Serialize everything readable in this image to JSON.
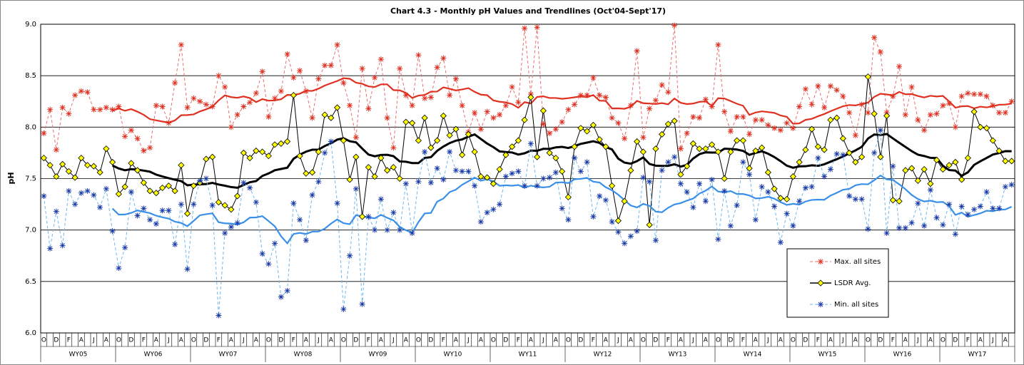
{
  "chart_data": {
    "type": "line",
    "title": "Chart 4.3 - Monthly pH Values and Trendlines (Oct'04-Sept'17)",
    "y_label": "pH",
    "ylim": [
      6,
      9
    ],
    "yticks": [
      {
        "value": 6,
        "label": "6.0"
      },
      6.5,
      {
        "value": 7,
        "label": "7.0"
      },
      7.5,
      {
        "value": 8,
        "label": "8.0"
      },
      8.5,
      {
        "value": 9,
        "label": "9.0"
      }
    ],
    "grid": true,
    "trendline_period": 12,
    "categories": [
      "O",
      null,
      "D",
      null,
      "F",
      null,
      "A",
      null,
      "J",
      null,
      "A",
      null,
      "O",
      null,
      "D",
      null,
      "F",
      null,
      "A",
      null,
      "J",
      null,
      "A",
      null,
      "O",
      null,
      "D",
      null,
      "F",
      null,
      "A",
      null,
      "J",
      null,
      "A",
      null,
      "O",
      null,
      "D",
      null,
      "F",
      null,
      "A",
      null,
      "J",
      null,
      "A",
      null,
      "O",
      null,
      "D",
      null,
      "F",
      null,
      "A",
      null,
      "J",
      null,
      "A",
      null,
      "O",
      null,
      "D",
      null,
      "F",
      null,
      "A",
      null,
      "J",
      null,
      "A",
      null,
      "O",
      null,
      "D",
      null,
      "F",
      null,
      "A",
      null,
      "J",
      null,
      "A",
      null,
      "O",
      null,
      "D",
      null,
      "F",
      null,
      "A",
      null,
      "J",
      null,
      "A",
      null,
      "O",
      null,
      "D",
      null,
      "F",
      null,
      "A",
      null,
      "J",
      null,
      "A",
      null,
      "O",
      null,
      "D",
      null,
      "F",
      null,
      "A",
      null,
      "J",
      null,
      "A",
      null,
      "O",
      null,
      "D",
      null,
      "F",
      null,
      "A",
      null,
      "J",
      null,
      "A",
      null,
      "O",
      null,
      "D",
      null,
      "F",
      null,
      "A",
      null,
      "J",
      null,
      "A",
      null,
      "O",
      null,
      "D",
      null,
      "F",
      null,
      "A",
      null,
      "J",
      null,
      "A",
      null
    ],
    "groups": [
      "WY05",
      "WY06",
      "WY07",
      "WY08",
      "WY09",
      "WY10",
      "WY11",
      "WY12",
      "WY13",
      "WY14",
      "WY15",
      "WY16",
      "WY17"
    ],
    "series": [
      {
        "name": "Max. all sites",
        "color": "#e87070",
        "marker_color": "#e03020",
        "trend_color": "#e03020",
        "marker": "asterisk",
        "dashed": true,
        "values": [
          7.94,
          8.17,
          7.78,
          8.19,
          8.13,
          8.31,
          8.35,
          8.34,
          8.17,
          8.17,
          8.19,
          8.17,
          8.2,
          7.91,
          7.97,
          7.89,
          7.77,
          7.8,
          8.21,
          8.2,
          8.04,
          8.43,
          8.8,
          8.19,
          8.28,
          8.25,
          8.22,
          8.2,
          8.5,
          8.39,
          8.0,
          8.12,
          8.2,
          8.24,
          8.33,
          8.54,
          8.1,
          8.28,
          8.35,
          8.71,
          8.48,
          8.55,
          8.35,
          8.09,
          8.47,
          8.6,
          8.6,
          8.8,
          8.43,
          8.21,
          7.9,
          8.57,
          8.18,
          8.48,
          8.66,
          8.09,
          7.8,
          8.57,
          8.31,
          8.21,
          8.7,
          8.28,
          8.29,
          8.58,
          8.67,
          8.31,
          8.47,
          8.21,
          7.95,
          8.14,
          7.98,
          8.15,
          8.09,
          8.12,
          8.21,
          8.39,
          8.24,
          8.96,
          8.32,
          8.97,
          8.03,
          7.94,
          7.98,
          8.05,
          8.17,
          8.22,
          8.31,
          8.31,
          8.48,
          8.31,
          8.29,
          8.09,
          8.04,
          7.89,
          8.21,
          8.74,
          7.9,
          8.18,
          8.26,
          8.41,
          8.34,
          8.99,
          7.79,
          7.94,
          8.1,
          8.09,
          8.27,
          8.2,
          8.8,
          8.15,
          7.96,
          8.1,
          8.1,
          7.93,
          8.07,
          8.07,
          8.02,
          7.99,
          7.97,
          8.04,
          7.99,
          8.2,
          8.37,
          8.22,
          8.4,
          8.19,
          8.4,
          8.36,
          8.3,
          8.14,
          7.92,
          8.22,
          8.14,
          8.87,
          8.73,
          8.14,
          8.3,
          8.59,
          8.12,
          8.39,
          8.07,
          7.97,
          8.12,
          8.13,
          8.21,
          8.23,
          8.0,
          8.3,
          8.33,
          8.32,
          8.32,
          8.3,
          8.21,
          8.14,
          8.14,
          8.25
        ]
      },
      {
        "name": "LSDR Avg.",
        "color": "#000000",
        "marker_color": "#ffff00",
        "trend_color": "#000000",
        "marker": "diamond",
        "dashed": false,
        "values": [
          7.7,
          7.63,
          7.52,
          7.64,
          7.57,
          7.51,
          7.7,
          7.63,
          7.62,
          7.56,
          7.79,
          7.66,
          7.35,
          7.42,
          7.65,
          7.58,
          7.46,
          7.38,
          7.36,
          7.41,
          7.43,
          7.38,
          7.63,
          7.16,
          7.43,
          7.46,
          7.69,
          7.71,
          7.27,
          7.24,
          7.2,
          7.33,
          7.75,
          7.7,
          7.77,
          7.76,
          7.72,
          7.83,
          7.84,
          7.86,
          8.31,
          7.72,
          7.55,
          7.56,
          7.76,
          8.12,
          8.09,
          8.19,
          7.87,
          7.49,
          7.71,
          7.13,
          7.61,
          7.52,
          7.7,
          7.58,
          7.61,
          7.5,
          8.05,
          8.04,
          7.87,
          8.09,
          7.8,
          7.87,
          8.11,
          7.92,
          7.98,
          7.73,
          7.93,
          7.76,
          7.52,
          7.51,
          7.45,
          7.59,
          7.73,
          7.81,
          7.87,
          8.07,
          8.29,
          7.71,
          8.16,
          7.75,
          7.7,
          7.57,
          7.32,
          7.81,
          7.99,
          7.96,
          8.02,
          7.88,
          7.81,
          7.43,
          7.09,
          7.28,
          7.58,
          7.86,
          7.76,
          7.05,
          7.79,
          7.93,
          8.03,
          8.06,
          7.54,
          7.62,
          7.84,
          7.79,
          7.79,
          7.83,
          7.76,
          7.5,
          7.76,
          7.87,
          7.87,
          7.6,
          7.77,
          7.8,
          7.56,
          7.4,
          7.31,
          7.3,
          7.52,
          7.66,
          7.78,
          7.98,
          7.81,
          7.78,
          8.07,
          8.09,
          7.89,
          7.75,
          7.66,
          7.71,
          8.49,
          8.13,
          7.71,
          8.11,
          7.29,
          7.28,
          7.58,
          7.6,
          7.48,
          7.59,
          7.45,
          7.68,
          7.59,
          7.63,
          7.66,
          7.49,
          7.7,
          8.15,
          8.0,
          7.99,
          7.87,
          7.77,
          7.67,
          7.67
        ]
      },
      {
        "name": "Min. all sites",
        "color": "#70b8f0",
        "marker_color": "#1a3aa8",
        "trend_color": "#3a90e8",
        "marker": "asterisk",
        "dashed": true,
        "values": [
          7.33,
          6.82,
          7.18,
          6.85,
          7.38,
          7.25,
          7.36,
          7.38,
          7.34,
          7.22,
          7.4,
          6.99,
          6.63,
          6.83,
          7.37,
          7.14,
          7.21,
          7.1,
          7.06,
          7.19,
          7.19,
          6.86,
          7.25,
          6.62,
          7.25,
          7.48,
          7.5,
          7.24,
          6.17,
          6.97,
          7.03,
          7.07,
          7.46,
          7.41,
          7.27,
          6.77,
          6.67,
          6.87,
          6.35,
          6.41,
          7.26,
          7.1,
          6.9,
          7.34,
          7.47,
          7.75,
          7.86,
          7.26,
          6.23,
          6.75,
          7.4,
          6.28,
          7.13,
          7.0,
          7.3,
          7.0,
          7.17,
          7.0,
          7.45,
          6.97,
          7.47,
          7.76,
          7.46,
          7.6,
          7.49,
          7.76,
          7.58,
          7.57,
          7.57,
          7.43,
          7.08,
          7.17,
          7.2,
          7.25,
          7.52,
          7.55,
          7.57,
          7.43,
          7.84,
          7.43,
          7.5,
          7.51,
          7.56,
          7.21,
          7.1,
          7.7,
          7.57,
          7.66,
          7.13,
          7.33,
          7.29,
          7.08,
          6.98,
          6.87,
          6.94,
          6.99,
          7.51,
          7.47,
          6.9,
          7.58,
          7.66,
          7.71,
          7.45,
          7.37,
          7.22,
          7.45,
          7.28,
          7.49,
          6.91,
          7.38,
          7.04,
          7.24,
          7.66,
          7.54,
          7.1,
          7.42,
          7.37,
          7.23,
          6.88,
          7.16,
          7.04,
          7.28,
          7.41,
          7.42,
          7.7,
          7.52,
          7.59,
          7.74,
          7.73,
          7.33,
          7.3,
          7.3,
          7.01,
          7.75,
          7.97,
          6.97,
          7.62,
          7.02,
          7.02,
          7.07,
          7.26,
          7.04,
          7.39,
          7.12,
          7.05,
          7.25,
          6.96,
          7.23,
          7.15,
          7.2,
          7.23,
          7.37,
          7.21,
          7.21,
          7.42,
          7.44
        ]
      }
    ]
  }
}
